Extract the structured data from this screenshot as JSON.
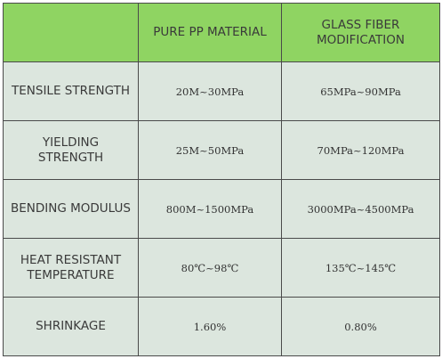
{
  "table": {
    "header": [
      "PURE PP MATERIAL",
      "GLASS FIBER MODIFICATION"
    ],
    "rows": [
      [
        "TENSILE STRENGTH",
        "20M~30MPa",
        "65MPa~90MPa"
      ],
      [
        "YIELDING STRENGTH",
        "25M~50MPa",
        "70MPa~120MPa"
      ],
      [
        "BENDING MODULUS",
        "800M~1500MPa",
        "3000MPa~4500MPa"
      ],
      [
        "HEAT RESISTANT TEMPERATURE",
        "80℃~98℃",
        "135℃~145℃"
      ],
      [
        "SHRINKAGE",
        "1.60%",
        "0.80%"
      ]
    ]
  }
}
